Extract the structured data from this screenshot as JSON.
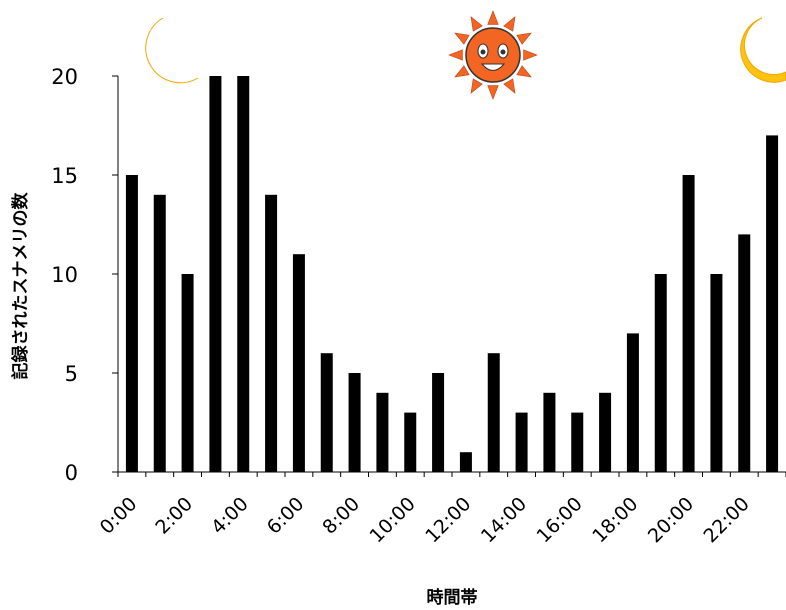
{
  "chart_data": {
    "type": "bar",
    "xlabel": "時間帯",
    "ylabel": "記録されたスナメリの数",
    "ylim": [
      0,
      20
    ],
    "yticks": [
      0,
      5,
      10,
      15,
      20
    ],
    "x_tick_labels": [
      "0:00",
      "2:00",
      "4:00",
      "6:00",
      "8:00",
      "10:00",
      "12:00",
      "14:00",
      "16:00",
      "18:00",
      "20:00",
      "22:00"
    ],
    "categories": [
      "0",
      "1",
      "2",
      "3",
      "4",
      "5",
      "6",
      "7",
      "8",
      "9",
      "10",
      "11",
      "12",
      "13",
      "14",
      "15",
      "16",
      "17",
      "18",
      "19",
      "20",
      "21",
      "22",
      "23"
    ],
    "values": [
      15,
      14,
      10,
      20,
      20,
      14,
      11,
      6,
      5,
      4,
      3,
      5,
      1,
      6,
      3,
      4,
      3,
      4,
      7,
      10,
      15,
      10,
      12,
      17
    ],
    "grid": false,
    "legend": "none",
    "bar_color": "#000000"
  },
  "decorations": {
    "left_icon": "crescent-moon-icon",
    "center_icon": "smiling-sun-icon",
    "right_icon": "crescent-moon-icon",
    "moon_color": "#ffc20e",
    "sun_color": "#f26522"
  }
}
